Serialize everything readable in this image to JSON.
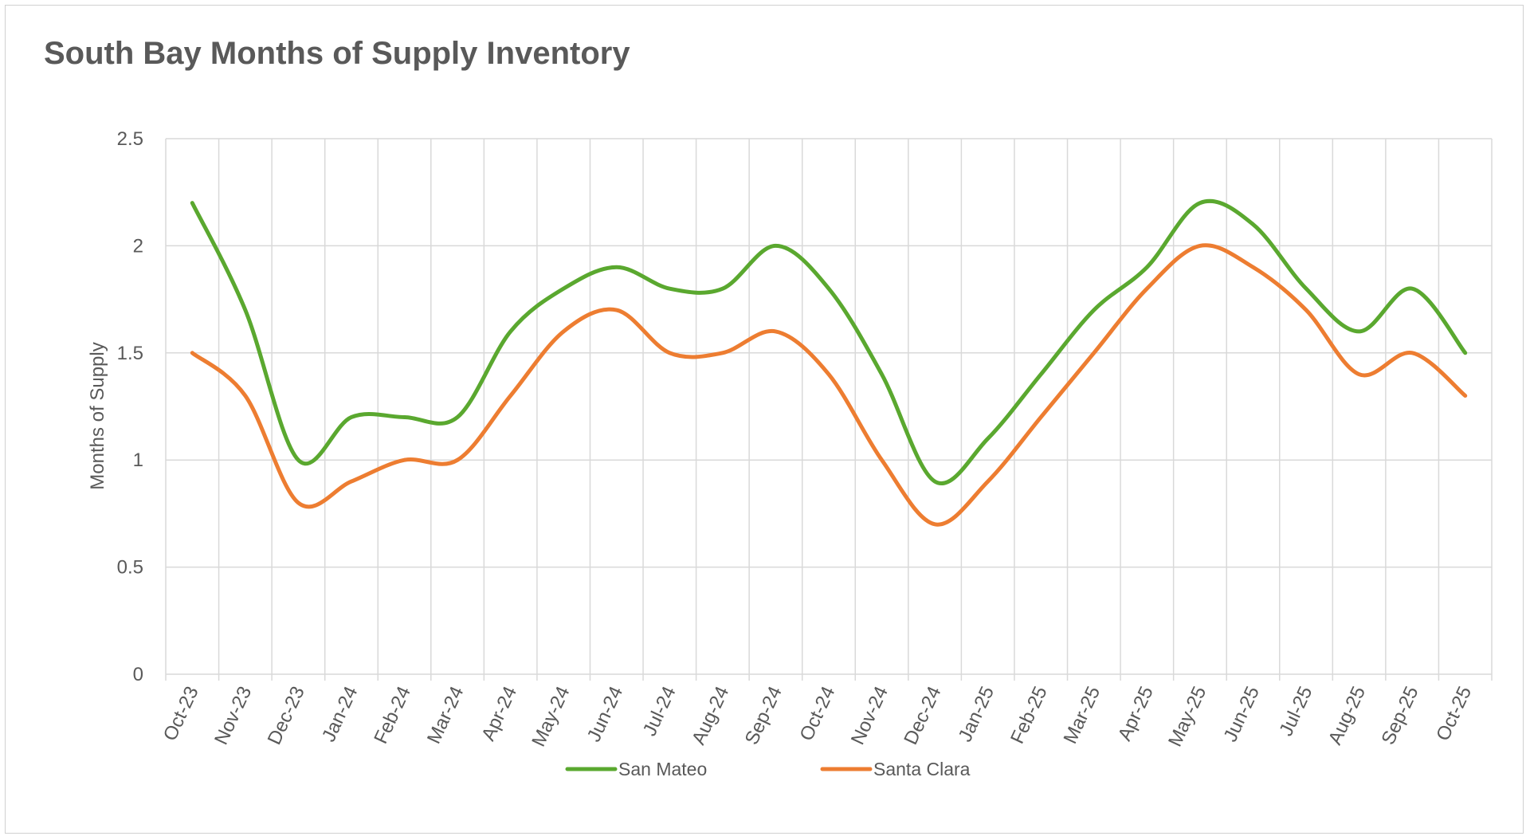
{
  "chart_data": {
    "type": "line",
    "title": "South Bay Months of Supply Inventory",
    "xlabel": "",
    "ylabel": "Months of Supply",
    "ylim": [
      0,
      2.5
    ],
    "yticks": [
      "0",
      "0.5",
      "1",
      "1.5",
      "2",
      "2.5"
    ],
    "smooth": true,
    "grid": true,
    "legend_position": "bottom",
    "categories": [
      "Oct-23",
      "Nov-23",
      "Dec-23",
      "Jan-24",
      "Feb-24",
      "Mar-24",
      "Apr-24",
      "May-24",
      "Jun-24",
      "Jul-24",
      "Aug-24",
      "Sep-24",
      "Oct-24",
      "Nov-24",
      "Dec-24",
      "Jan-25",
      "Feb-25",
      "Mar-25",
      "Apr-25",
      "May-25",
      "Jun-25",
      "Jul-25",
      "Aug-25",
      "Sep-25",
      "Oct-25"
    ],
    "series": [
      {
        "name": "San Mateo",
        "color": "#5aa82f",
        "values": [
          2.2,
          1.7,
          1.0,
          1.2,
          1.2,
          1.2,
          1.6,
          1.8,
          1.9,
          1.8,
          1.8,
          2.0,
          1.8,
          1.4,
          0.9,
          1.1,
          1.4,
          1.7,
          1.9,
          2.2,
          2.1,
          1.8,
          1.6,
          1.8,
          1.5
        ]
      },
      {
        "name": "Santa Clara",
        "color": "#ed7d31",
        "values": [
          1.5,
          1.3,
          0.8,
          0.9,
          1.0,
          1.0,
          1.3,
          1.6,
          1.7,
          1.5,
          1.5,
          1.6,
          1.4,
          1.0,
          0.7,
          0.9,
          1.2,
          1.5,
          1.8,
          2.0,
          1.9,
          1.7,
          1.4,
          1.5,
          1.3
        ]
      }
    ]
  }
}
